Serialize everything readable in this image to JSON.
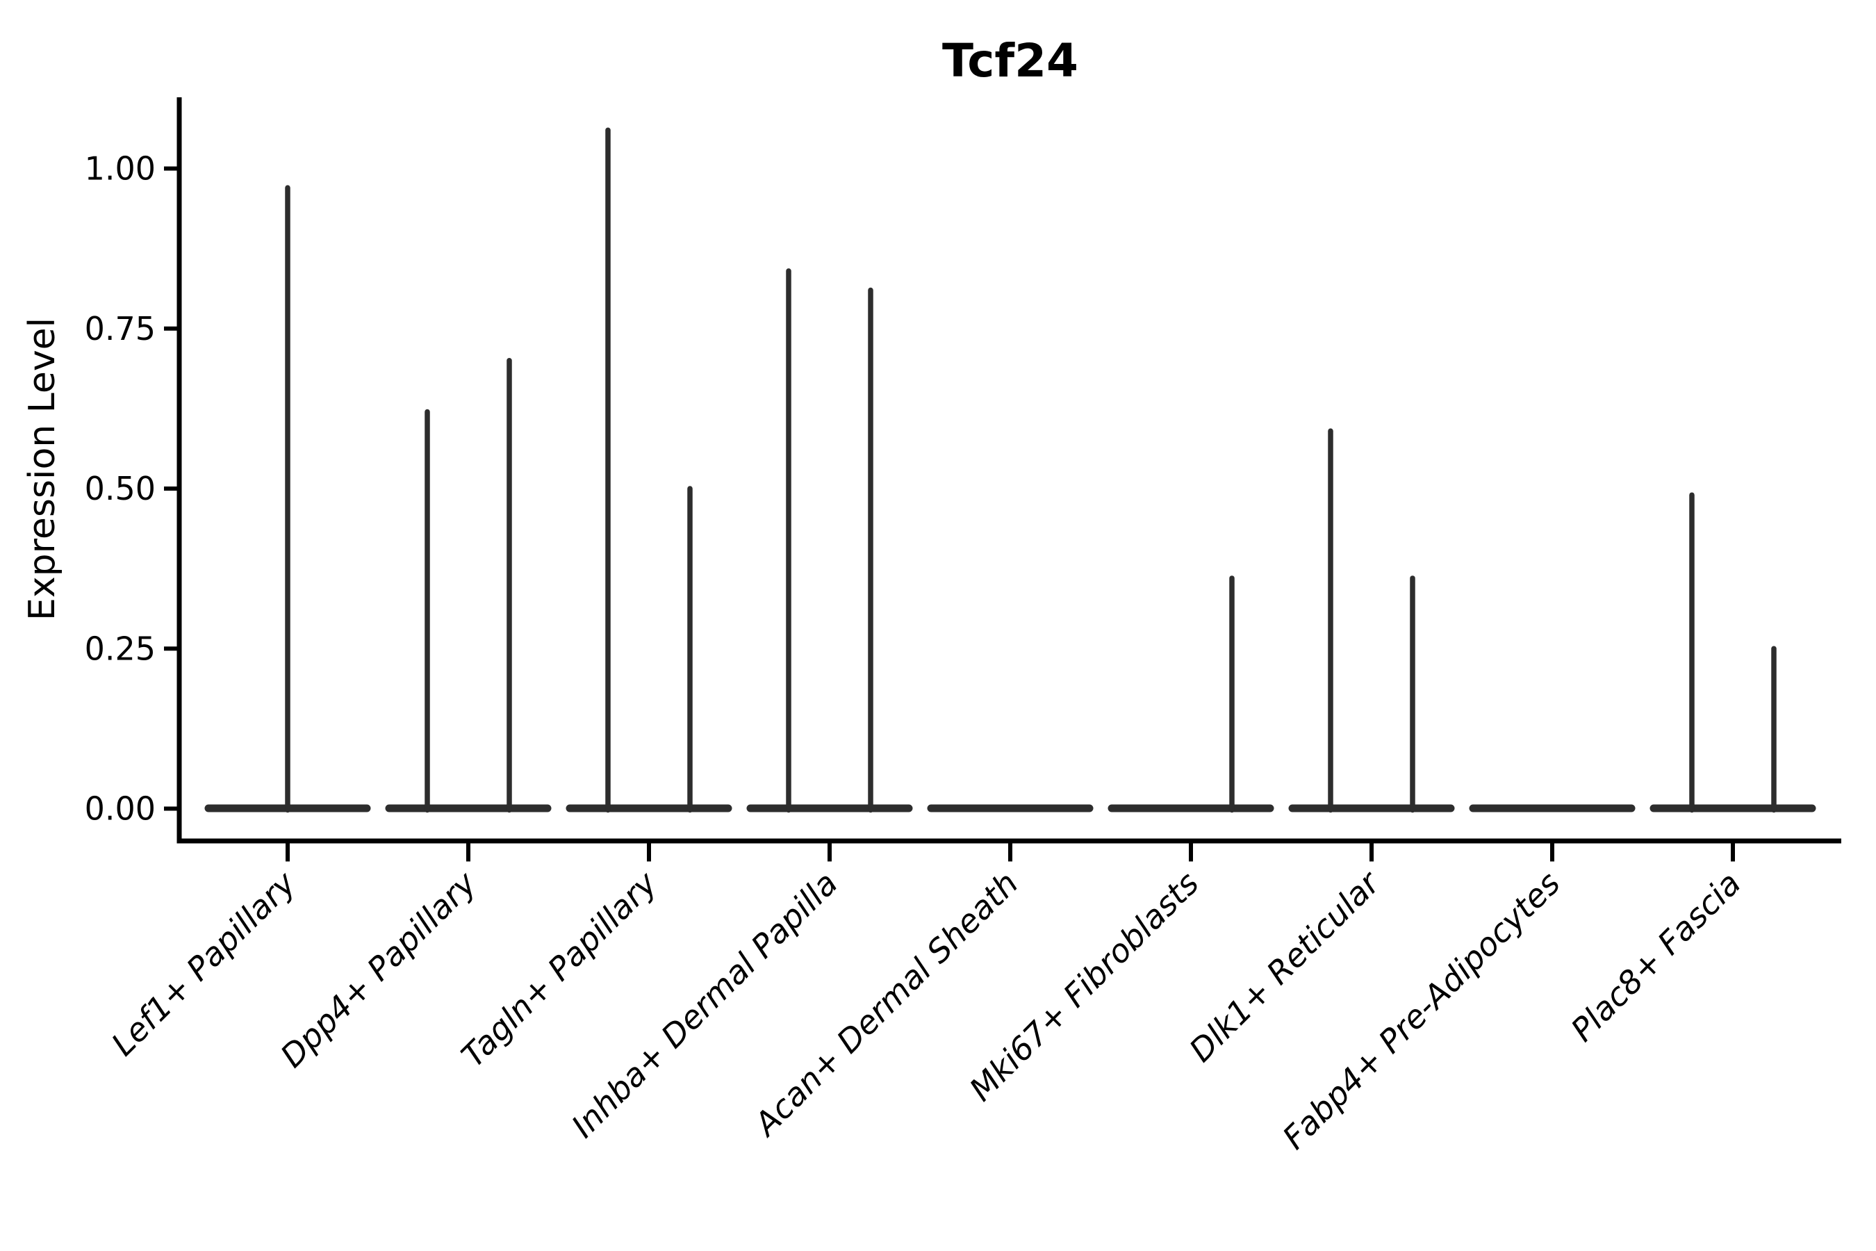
{
  "figure": {
    "title": "Tcf24",
    "ylabel": "Expression Level",
    "background_color": "#ffffff"
  },
  "colors": {
    "violin_stroke": "#2d2d2d",
    "axis": "#000000",
    "text": "#000000"
  },
  "chart_data": {
    "type": "violin",
    "title": "Tcf24",
    "xlabel": "",
    "ylabel": "Expression Level",
    "grid": false,
    "legend": "none",
    "x_label_rotation_deg": 45,
    "x_label_style": "italic",
    "ytick_labels": [
      "0.00",
      "0.25",
      "0.50",
      "0.75",
      "1.00"
    ],
    "ytick_values": [
      0,
      0.25,
      0.5,
      0.75,
      1.0
    ],
    "ylim": [
      -0.05,
      1.11
    ],
    "categories": [
      "Lef1+ Papillary",
      "Dpp4+ Papillary",
      "Tagln+ Papillary",
      "Inhba+ Dermal Papilla",
      "Acan+ Dermal Sheath",
      "Mki67+ Fibroblasts",
      "Dlk1+ Reticular",
      "Fabp4+ Pre-Adipocytes",
      "Plac8+ Fascia"
    ],
    "violin_description": "Each category has a wide flat base at expression 0; thin spikes rise to the max expression. 'full' = one violin centered on the category; 'left'/'right' = two half-width violins per category.",
    "violins": [
      {
        "category": "Lef1+ Papillary",
        "spikes": [
          {
            "position": "full",
            "max": 0.97
          }
        ]
      },
      {
        "category": "Dpp4+ Papillary",
        "spikes": [
          {
            "position": "left",
            "max": 0.62
          },
          {
            "position": "right",
            "max": 0.7
          }
        ]
      },
      {
        "category": "Tagln+ Papillary",
        "spikes": [
          {
            "position": "left",
            "max": 1.06
          },
          {
            "position": "right",
            "max": 0.5
          }
        ]
      },
      {
        "category": "Inhba+ Dermal Papilla",
        "spikes": [
          {
            "position": "left",
            "max": 0.84
          },
          {
            "position": "right",
            "max": 0.81
          }
        ]
      },
      {
        "category": "Acan+ Dermal Sheath",
        "spikes": []
      },
      {
        "category": "Mki67+ Fibroblasts",
        "spikes": [
          {
            "position": "right",
            "max": 0.36
          }
        ]
      },
      {
        "category": "Dlk1+ Reticular",
        "spikes": [
          {
            "position": "left",
            "max": 0.59
          },
          {
            "position": "right",
            "max": 0.36
          }
        ]
      },
      {
        "category": "Fabp4+ Pre-Adipocytes",
        "spikes": []
      },
      {
        "category": "Plac8+ Fascia",
        "spikes": [
          {
            "position": "left",
            "max": 0.49
          },
          {
            "position": "right",
            "max": 0.25
          }
        ]
      }
    ]
  }
}
